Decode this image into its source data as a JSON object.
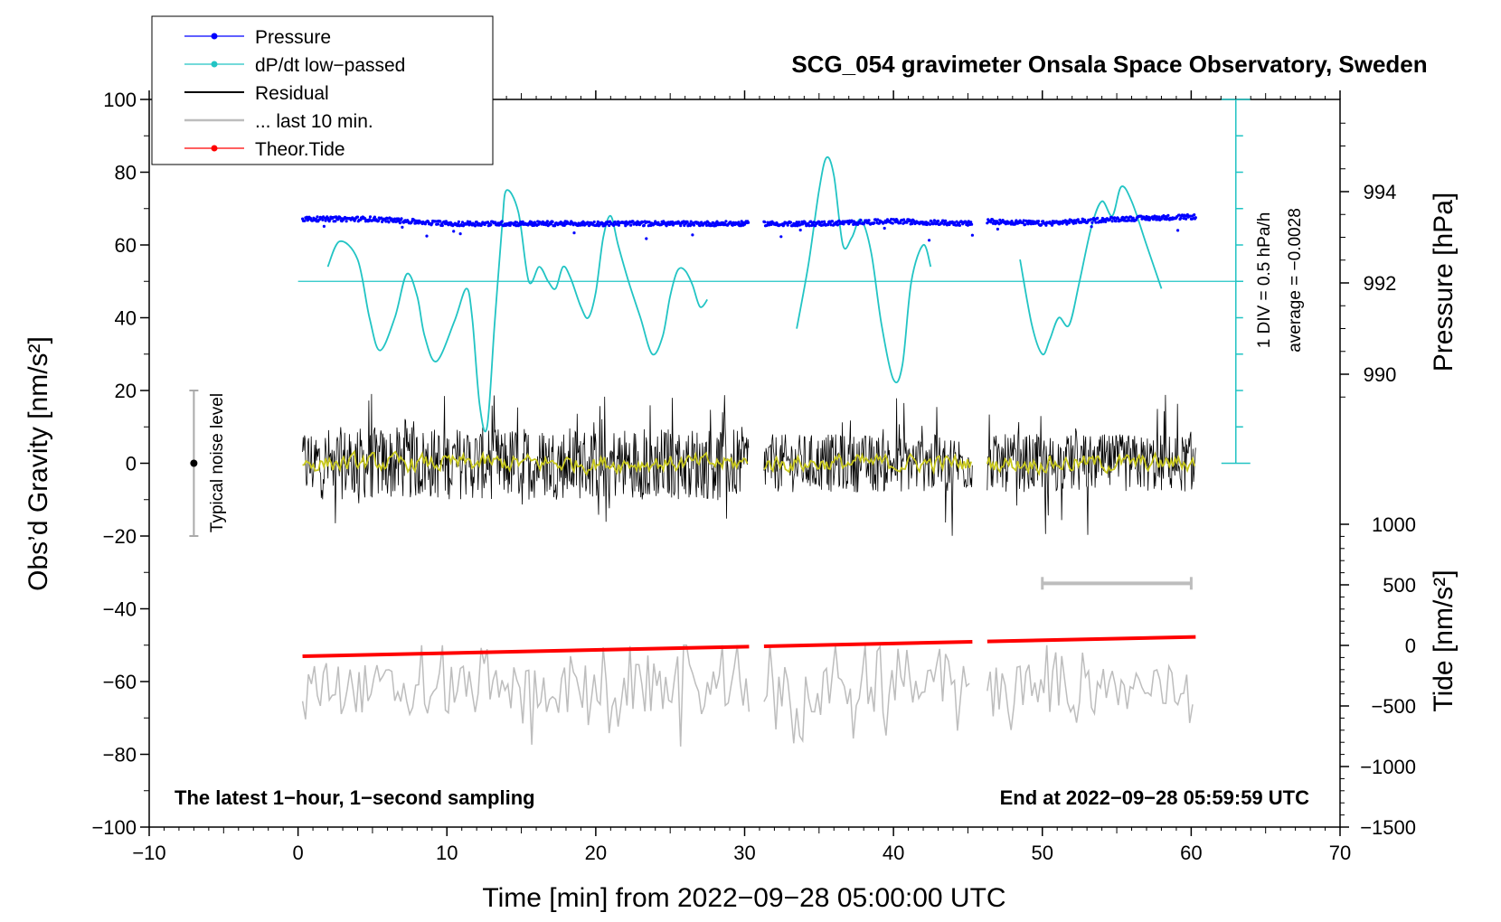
{
  "chart_data": {
    "type": "line",
    "title": "SCG_054 gravimeter Onsala Space Observatory, Sweden",
    "xlabel": "Time [min] from 2022−09−28 05:00:00 UTC",
    "ylabel": "Obs’d Gravity [nm/s²]",
    "y2label_pressure": "Pressure [hPa]",
    "y2label_tide": "Tide [nm/s²]",
    "xlim": [
      -10,
      70
    ],
    "ylim": [
      -100,
      100
    ],
    "pressure_lim": [
      988,
      996
    ],
    "tide_lim": [
      -1500,
      1000
    ],
    "x_ticks": [
      -10,
      0,
      10,
      20,
      30,
      40,
      50,
      60,
      70
    ],
    "x_tick_labels": [
      "−10",
      "0",
      "10",
      "20",
      "30",
      "40",
      "50",
      "60",
      "70"
    ],
    "y_ticks": [
      -100,
      -80,
      -60,
      -40,
      -20,
      0,
      20,
      40,
      60,
      80,
      100
    ],
    "y_tick_labels": [
      "−100",
      "−80",
      "−60",
      "−40",
      "−20",
      "0",
      "20",
      "40",
      "60",
      "80",
      "100"
    ],
    "pressure_ticks": [
      990,
      992,
      994
    ],
    "pressure_tick_labels": [
      "990",
      "992",
      "994"
    ],
    "tide_ticks": [
      -1500,
      -1000,
      -500,
      0,
      500,
      1000
    ],
    "tide_tick_labels": [
      "−1500",
      "−1000",
      "−500",
      "0",
      "500",
      "1000"
    ],
    "segments": [
      [
        0.3,
        30.3
      ],
      [
        31.3,
        45.3
      ],
      [
        46.3,
        60.3
      ]
    ],
    "legend": {
      "pressure": "Pressure",
      "dpdt": "dP/dt low−passed",
      "residual": "Residual",
      "last10": "... last 10 min.",
      "tide": "Theor.Tide"
    },
    "legend_position": "top-left",
    "colors": {
      "pressure": "#0000ff",
      "dpdt": "#22c4c4",
      "residual": "#000000",
      "residual_smooth": "#c8c81e",
      "last10": "#bdbdbd",
      "tide": "#ff0000"
    },
    "series": [
      {
        "name": "Pressure",
        "axis": "pressure_hPa",
        "x": [
          0.5,
          5,
          10,
          15,
          20,
          25,
          30,
          31.5,
          35,
          40,
          45,
          46.5,
          50,
          55,
          60.3
        ],
        "values": [
          993.4,
          993.4,
          993.3,
          993.3,
          993.3,
          993.3,
          993.3,
          993.3,
          993.3,
          993.35,
          993.3,
          993.35,
          993.3,
          993.4,
          993.45
        ]
      },
      {
        "name": "dP/dt low−passed",
        "axis": "gravity_scaled",
        "baseline": 50,
        "x": [
          2,
          2.8,
          4,
          4.8,
          5.5,
          6.5,
          7.3,
          8,
          8.5,
          9.3,
          10.5,
          11.3,
          11.7,
          12.2,
          12.7,
          13.2,
          13.7,
          14,
          14.8,
          15.5,
          16.2,
          16.8,
          17.3,
          17.8,
          18.3,
          19,
          19.5,
          20,
          20.5,
          21,
          21.5,
          22.2,
          23,
          23.8,
          24.5,
          25,
          25.5,
          26,
          26.5,
          27,
          27.5
        ],
        "values": [
          54,
          61,
          56,
          40,
          31,
          40,
          52,
          46,
          35,
          28,
          39,
          48,
          40,
          16,
          10,
          38,
          65,
          75,
          69,
          50,
          54,
          50,
          48,
          54,
          51,
          43,
          40,
          47,
          62,
          68,
          60,
          50,
          40,
          30,
          35,
          46,
          53,
          53,
          49,
          43,
          45
        ]
      },
      {
        "name": "dP/dt low−passed",
        "axis": "gravity_scaled",
        "baseline": 50,
        "x": [
          33.5,
          34.3,
          35,
          35.5,
          36,
          36.6,
          37.2,
          37.8,
          38.5,
          39.2,
          40,
          40.6,
          41.2,
          42,
          42.5
        ],
        "values": [
          37,
          55,
          75,
          84,
          79,
          60,
          62,
          67,
          58,
          38,
          23,
          27,
          50,
          60,
          54
        ]
      },
      {
        "name": "dP/dt low−passed",
        "axis": "gravity_scaled",
        "baseline": 50,
        "x": [
          48.5,
          49.3,
          50,
          50.5,
          51.1,
          51.8,
          52.5,
          53.3,
          54,
          54.7,
          55.3,
          56,
          57,
          58
        ],
        "values": [
          56,
          38,
          30,
          34,
          40,
          38,
          50,
          65,
          72,
          68,
          76,
          72,
          60,
          48
        ]
      },
      {
        "name": "Residual",
        "axis": "gravity",
        "description_range": [
          -22,
          21
        ],
        "x": [
          0.3,
          60.3
        ],
        "values": [
          0,
          0
        ]
      },
      {
        "name": "... last 10 min.",
        "axis": "gravity",
        "x": [
          0,
          60
        ],
        "values": [
          -62,
          -65
        ]
      },
      {
        "name": "Theor.Tide",
        "axis": "tide_nm_s2",
        "x": [
          0.3,
          60.3
        ],
        "values": [
          -90,
          70
        ]
      }
    ],
    "annotations": {
      "noise_label": "Typical noise level",
      "div_label": "1 DIV = 0.5 hPa/h",
      "average_label": "average = −0.0028",
      "bottom_left": "The latest 1−hour, 1−second sampling",
      "bottom_right": "End at 2022−09−28 05:59:59 UTC"
    },
    "noise_bar": {
      "x": -7,
      "center": 0,
      "low": -20,
      "high": 20
    },
    "scale_bar_10min": {
      "x_start": 50,
      "x_end": 60,
      "y": -33
    },
    "div_scale": {
      "x": 63,
      "from": 0,
      "to": 100,
      "minor_div": 10
    }
  }
}
